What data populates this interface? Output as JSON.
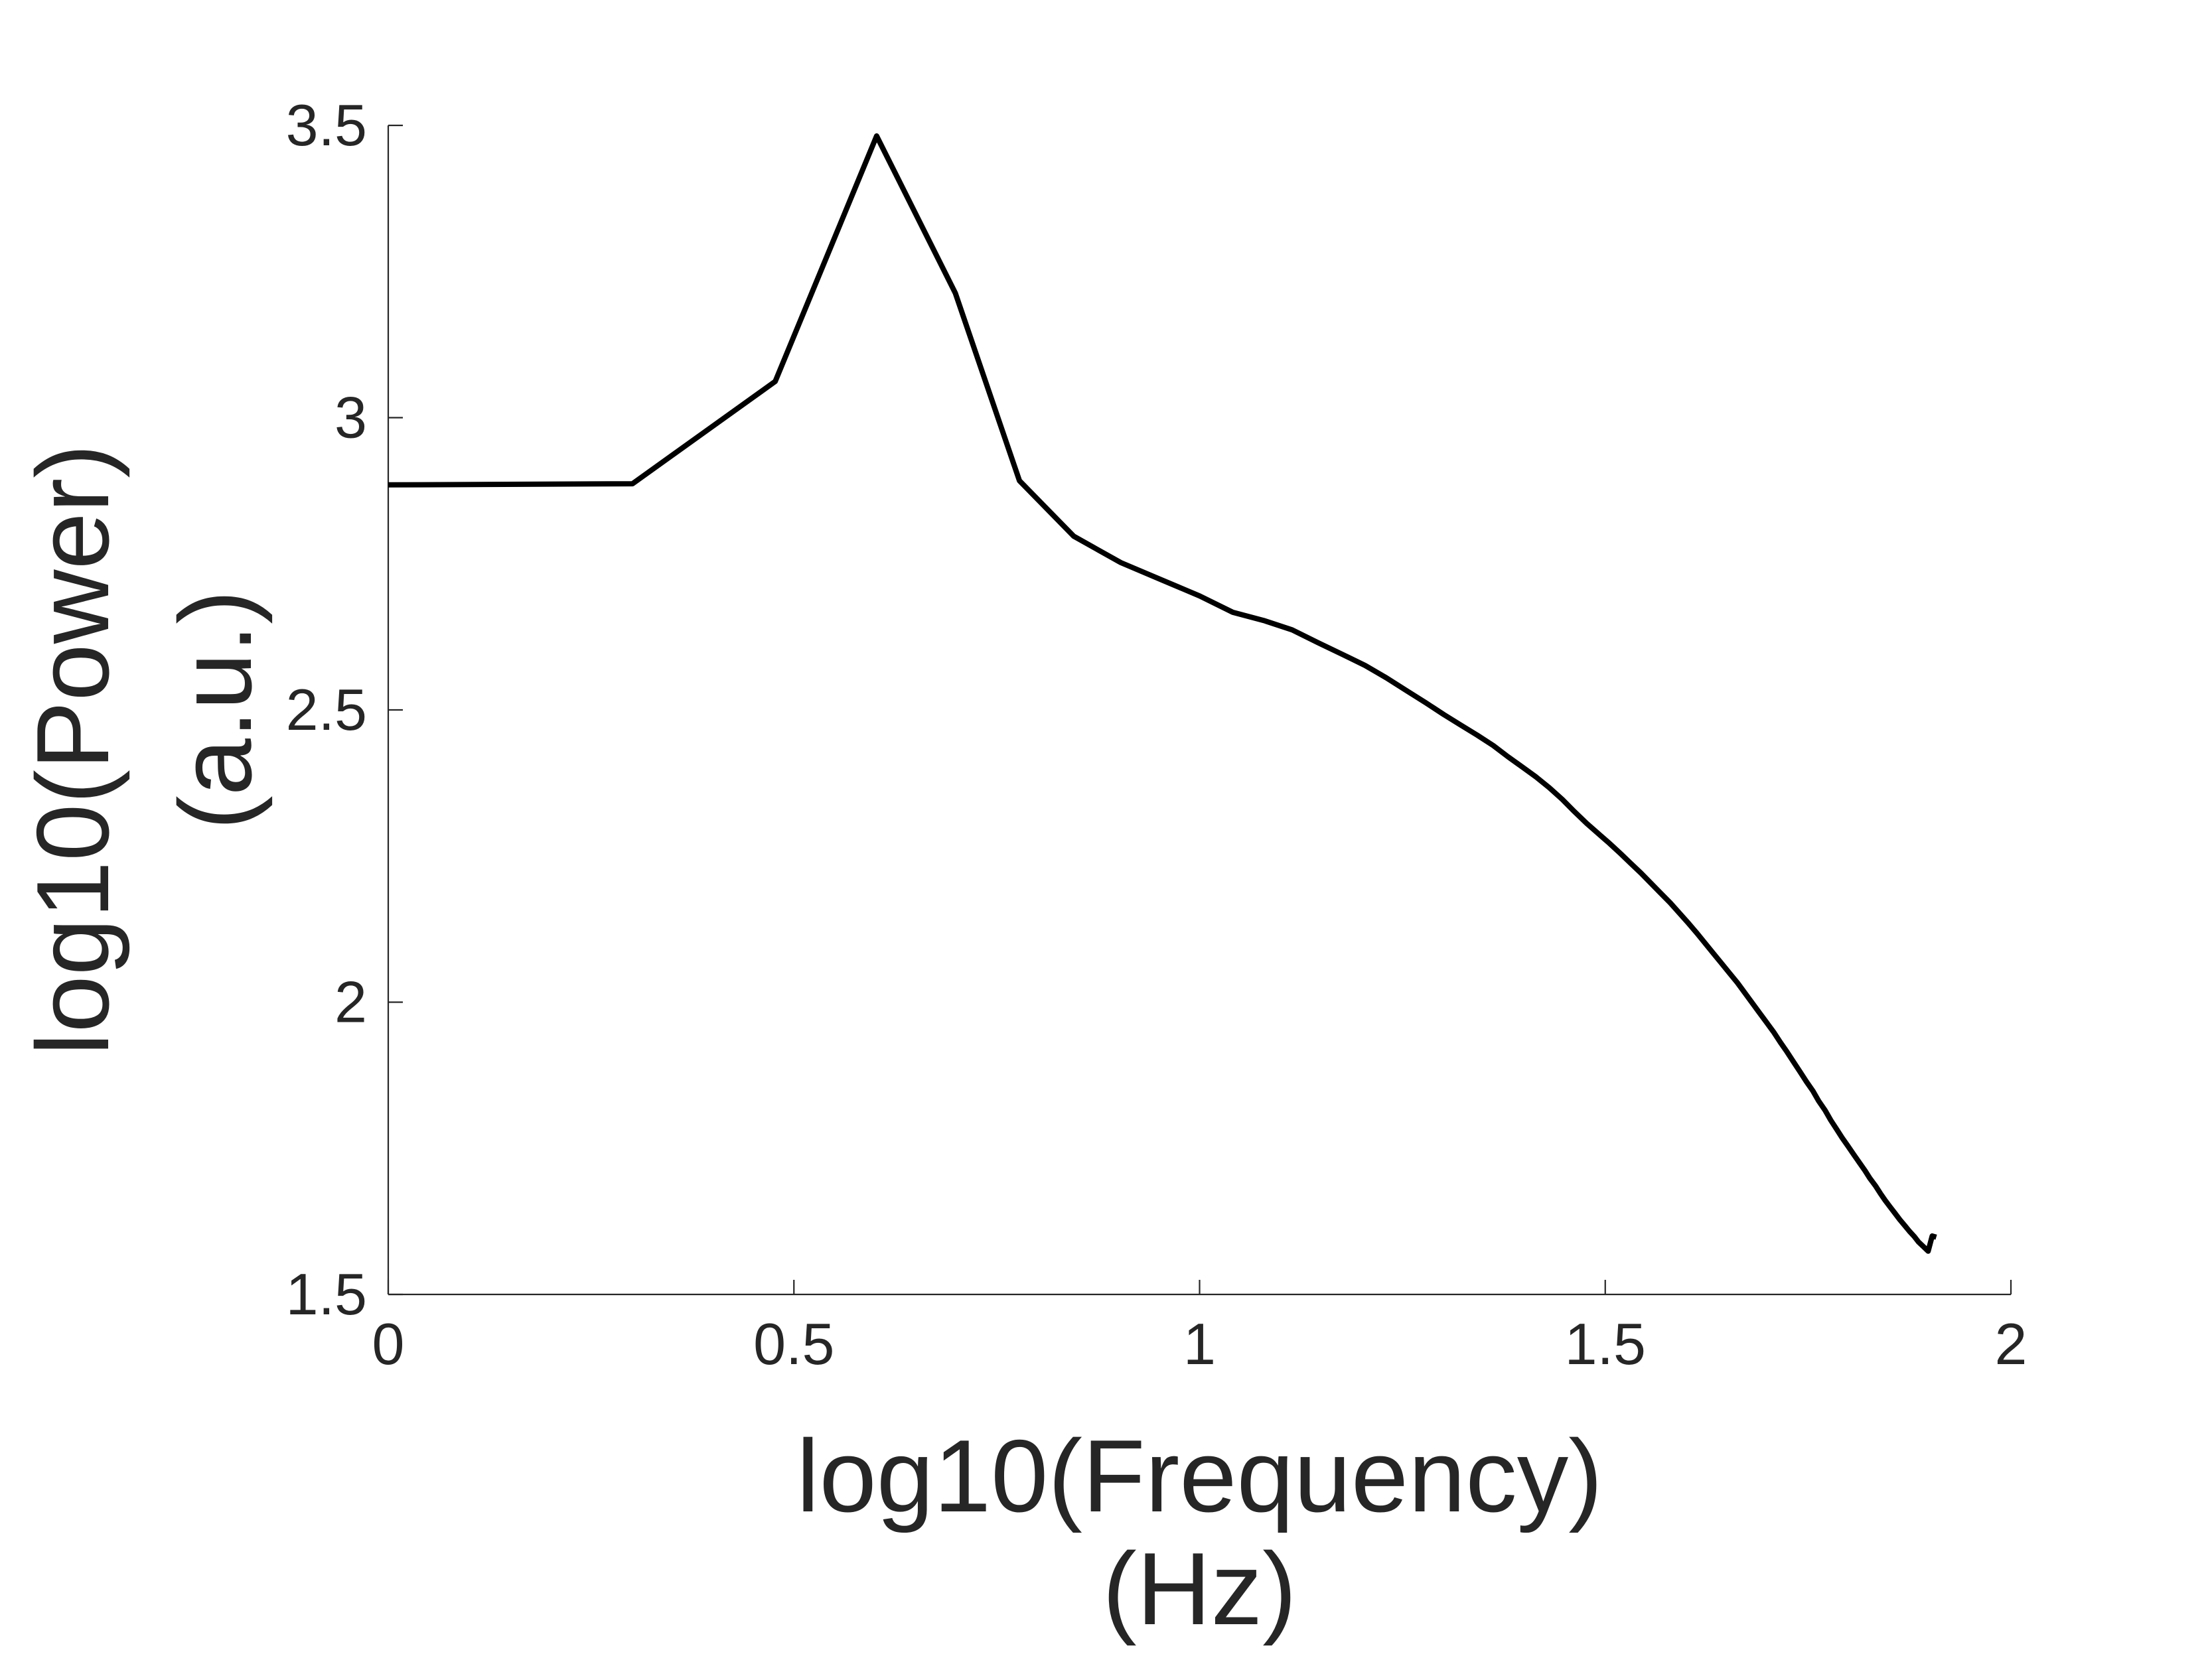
{
  "chart_data": {
    "type": "line",
    "title": "",
    "xlabel_lines": [
      "log10(Frequency)",
      "(Hz)"
    ],
    "ylabel_lines": [
      "log10(Power)",
      "(a.u.)"
    ],
    "xlim": [
      0,
      2
    ],
    "ylim": [
      1.5,
      3.5
    ],
    "xticks": [
      {
        "value": 0,
        "label": "0"
      },
      {
        "value": 0.5,
        "label": "0.5"
      },
      {
        "value": 1,
        "label": "1"
      },
      {
        "value": 1.5,
        "label": "1.5"
      },
      {
        "value": 2,
        "label": "2"
      }
    ],
    "yticks": [
      {
        "value": 1.5,
        "label": "1.5"
      },
      {
        "value": 2,
        "label": "2"
      },
      {
        "value": 2.5,
        "label": "2.5"
      },
      {
        "value": 3,
        "label": "3"
      },
      {
        "value": 3.5,
        "label": "3.5"
      }
    ],
    "grid": false,
    "line_color": "#000000",
    "axis_color": "#262626",
    "series": [
      {
        "x": [
          0,
          0.301,
          0.477,
          0.602,
          0.699,
          0.778,
          0.845,
          0.903,
          0.954,
          1.0,
          1.041,
          1.079,
          1.114,
          1.146,
          1.176,
          1.204,
          1.23,
          1.255,
          1.279,
          1.301,
          1.322,
          1.342,
          1.362,
          1.38,
          1.398,
          1.415,
          1.431,
          1.447,
          1.462,
          1.477,
          1.491,
          1.505,
          1.519,
          1.531,
          1.544,
          1.556,
          1.568,
          1.58,
          1.591,
          1.602,
          1.613,
          1.623,
          1.633,
          1.643,
          1.653,
          1.663,
          1.672,
          1.681,
          1.69,
          1.699,
          1.708,
          1.716,
          1.724,
          1.732,
          1.74,
          1.748,
          1.756,
          1.763,
          1.771,
          1.778,
          1.785,
          1.792,
          1.799,
          1.806,
          1.813,
          1.82,
          1.826,
          1.833,
          1.839,
          1.845,
          1.851,
          1.857,
          1.863,
          1.869,
          1.875,
          1.881,
          1.886,
          1.892,
          1.898,
          1.903,
          1.908
        ],
        "y": [
          2.885,
          2.887,
          3.062,
          3.482,
          3.213,
          2.892,
          2.797,
          2.752,
          2.722,
          2.695,
          2.667,
          2.653,
          2.637,
          2.615,
          2.595,
          2.576,
          2.555,
          2.533,
          2.512,
          2.492,
          2.474,
          2.457,
          2.439,
          2.42,
          2.402,
          2.385,
          2.367,
          2.347,
          2.326,
          2.306,
          2.289,
          2.272,
          2.254,
          2.238,
          2.221,
          2.204,
          2.187,
          2.17,
          2.153,
          2.136,
          2.118,
          2.101,
          2.084,
          2.067,
          2.05,
          2.033,
          2.016,
          1.999,
          1.982,
          1.965,
          1.948,
          1.931,
          1.915,
          1.898,
          1.881,
          1.864,
          1.848,
          1.831,
          1.815,
          1.798,
          1.783,
          1.768,
          1.754,
          1.74,
          1.726,
          1.712,
          1.699,
          1.686,
          1.673,
          1.661,
          1.65,
          1.639,
          1.628,
          1.618,
          1.608,
          1.599,
          1.59,
          1.582,
          1.574,
          1.6,
          1.598
        ]
      }
    ]
  }
}
